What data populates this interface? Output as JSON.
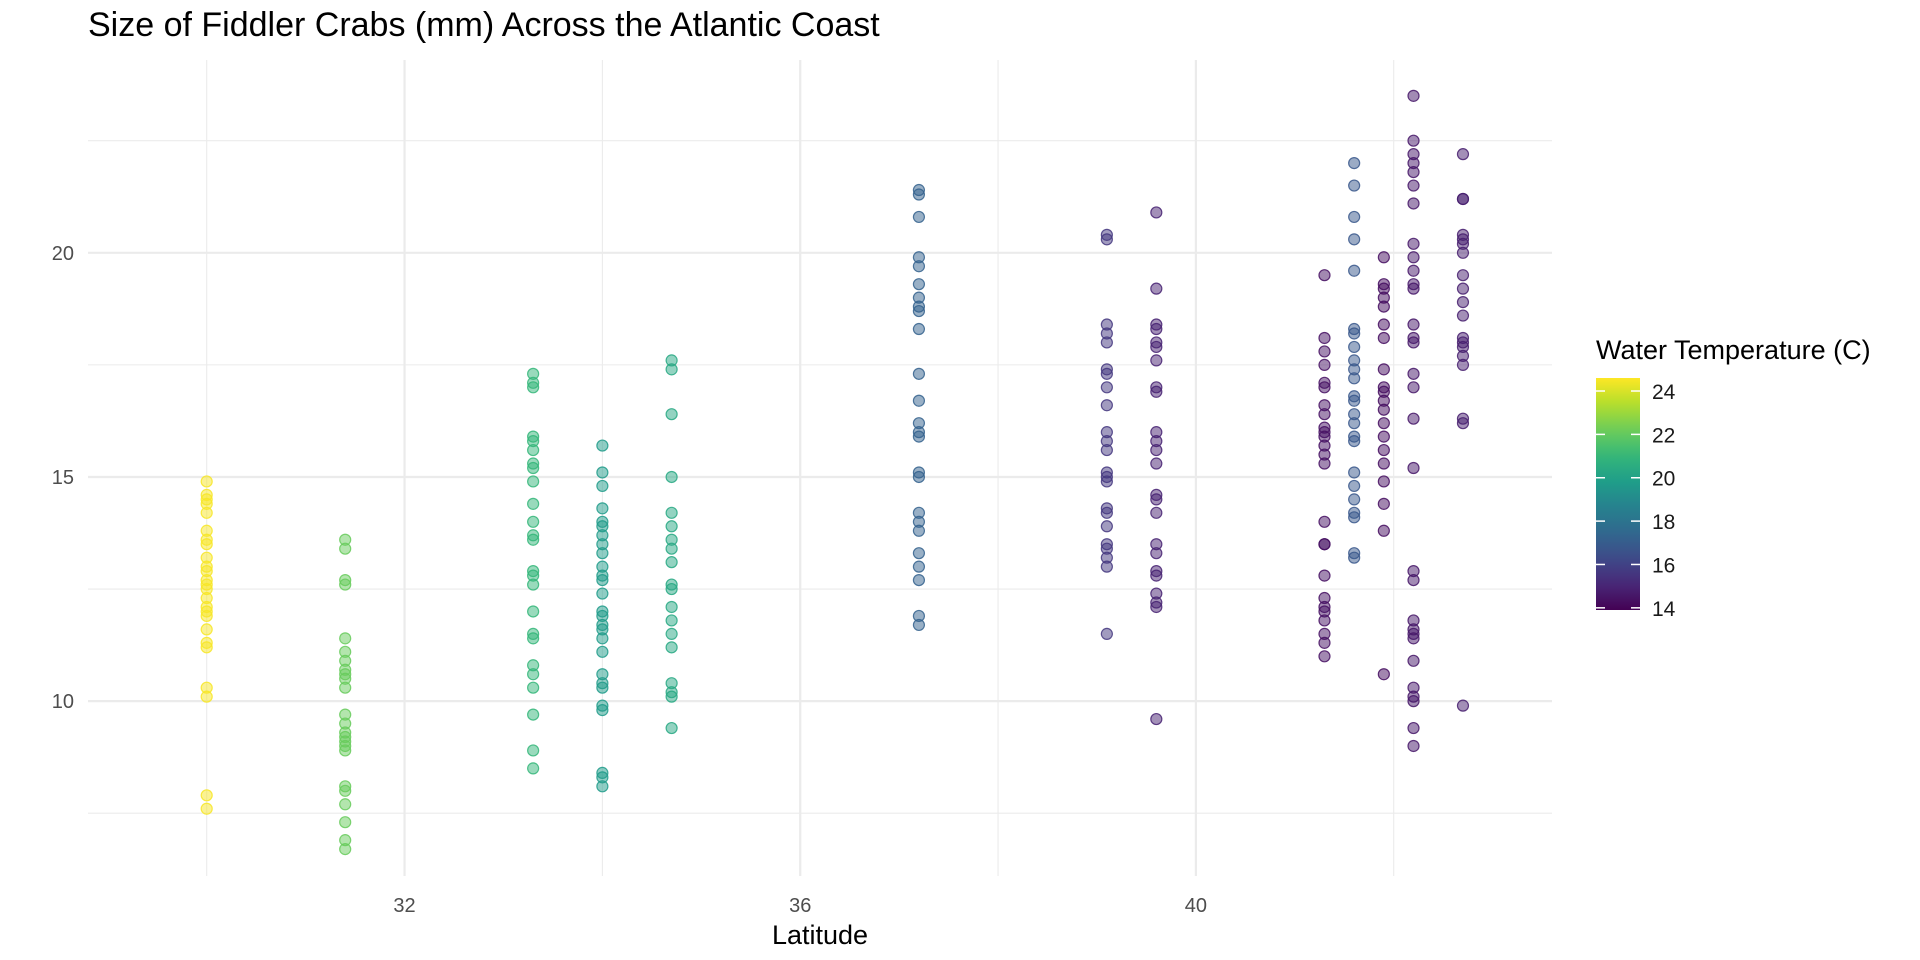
{
  "chart_data": {
    "type": "scatter",
    "title": "Size of Fiddler Crabs (mm) Across the Atlantic Coast",
    "xlabel": "Latitude",
    "ylabel": "",
    "xlim": [
      28.8,
      43.6
    ],
    "ylim": [
      6.1,
      24.3
    ],
    "x_ticks": [
      32,
      36,
      40
    ],
    "y_ticks": [
      10,
      15,
      20
    ],
    "grid": true,
    "point_opacity": 0.5,
    "legend": {
      "title": "Water Temperature (C)",
      "placement": "right",
      "type": "colorbar",
      "range": [
        13.9,
        24.6
      ],
      "ticks": [
        14,
        16,
        18,
        20,
        22,
        24
      ],
      "colormap": "viridis"
    },
    "groups": [
      {
        "latitude": 30.0,
        "water_temp": 24.5,
        "sizes": [
          14.9,
          14.6,
          14.5,
          14.4,
          14.2,
          13.8,
          13.6,
          13.5,
          13.2,
          13.0,
          12.9,
          12.7,
          12.6,
          12.5,
          12.3,
          12.1,
          12.0,
          11.9,
          11.6,
          11.3,
          11.2,
          10.3,
          10.1,
          7.9,
          7.6
        ]
      },
      {
        "latitude": 31.4,
        "water_temp": 22.1,
        "sizes": [
          13.6,
          13.4,
          12.7,
          12.6,
          11.4,
          11.1,
          10.9,
          10.7,
          10.6,
          10.5,
          10.3,
          9.7,
          9.5,
          9.3,
          9.2,
          9.1,
          9.0,
          8.9,
          8.1,
          8.0,
          7.7,
          7.3,
          6.9,
          6.7
        ]
      },
      {
        "latitude": 33.3,
        "water_temp": 21.0,
        "sizes": [
          17.3,
          17.1,
          17.0,
          15.9,
          15.8,
          15.6,
          15.3,
          15.2,
          14.9,
          14.4,
          14.0,
          13.7,
          13.6,
          12.9,
          12.8,
          12.6,
          12.0,
          11.5,
          11.4,
          10.8,
          10.6,
          10.3,
          9.7,
          8.9,
          8.5
        ]
      },
      {
        "latitude": 34.0,
        "water_temp": 19.7,
        "sizes": [
          15.7,
          15.1,
          14.8,
          14.3,
          14.0,
          13.9,
          13.7,
          13.5,
          13.3,
          13.0,
          12.8,
          12.7,
          12.4,
          12.0,
          11.9,
          11.7,
          11.6,
          11.4,
          11.1,
          10.6,
          10.4,
          10.3,
          9.9,
          9.8,
          8.4,
          8.3,
          8.1
        ]
      },
      {
        "latitude": 34.7,
        "water_temp": 20.3,
        "sizes": [
          17.6,
          17.4,
          16.4,
          15.0,
          14.2,
          13.9,
          13.6,
          13.4,
          13.1,
          12.6,
          12.5,
          12.1,
          11.8,
          11.5,
          11.2,
          10.4,
          10.2,
          10.1,
          9.4
        ]
      },
      {
        "latitude": 37.2,
        "water_temp": 17.2,
        "sizes": [
          21.4,
          21.3,
          20.8,
          19.9,
          19.7,
          19.3,
          19.0,
          18.8,
          18.7,
          18.3,
          17.3,
          16.7,
          16.2,
          16.0,
          15.9,
          15.1,
          15.0,
          14.2,
          14.0,
          13.8,
          13.3,
          13.0,
          12.7,
          11.9,
          11.7
        ]
      },
      {
        "latitude": 39.1,
        "water_temp": 15.6,
        "sizes": [
          20.4,
          20.3,
          18.4,
          18.2,
          18.0,
          17.4,
          17.3,
          17.0,
          16.6,
          16.0,
          15.8,
          15.6,
          15.1,
          15.0,
          14.9,
          14.3,
          14.2,
          13.9,
          13.5,
          13.4,
          13.2,
          13.0,
          11.5
        ]
      },
      {
        "latitude": 39.6,
        "water_temp": 14.9,
        "sizes": [
          20.9,
          19.2,
          18.4,
          18.3,
          18.0,
          17.9,
          17.6,
          17.0,
          16.9,
          16.0,
          15.8,
          15.6,
          15.3,
          14.6,
          14.5,
          14.2,
          13.5,
          13.3,
          12.9,
          12.8,
          12.4,
          12.2,
          12.1,
          9.6
        ]
      },
      {
        "latitude": 41.3,
        "water_temp": 14.4,
        "sizes": [
          19.5,
          18.1,
          17.8,
          17.5,
          17.1,
          17.0,
          16.6,
          16.4,
          16.1,
          16.0,
          15.9,
          15.7,
          15.5,
          15.3,
          14.0,
          13.5,
          13.5,
          12.8,
          12.3,
          12.1,
          12.0,
          11.8,
          11.5,
          11.3,
          11.0
        ]
      },
      {
        "latitude": 41.6,
        "water_temp": 16.8,
        "sizes": [
          22.0,
          21.5,
          20.8,
          20.3,
          19.6,
          18.3,
          18.2,
          17.9,
          17.6,
          17.4,
          17.2,
          16.8,
          16.7,
          16.4,
          16.2,
          15.9,
          15.8,
          15.1,
          14.8,
          14.5,
          14.2,
          14.1,
          13.3,
          13.2
        ]
      },
      {
        "latitude": 41.9,
        "water_temp": 14.3,
        "sizes": [
          19.9,
          19.3,
          19.2,
          19.0,
          18.8,
          18.4,
          18.1,
          17.4,
          17.0,
          16.9,
          16.7,
          16.5,
          16.2,
          15.9,
          15.6,
          15.3,
          14.9,
          14.4,
          13.8,
          10.6
        ]
      },
      {
        "latitude": 42.2,
        "water_temp": 14.6,
        "sizes": [
          23.5,
          22.5,
          22.2,
          22.0,
          21.8,
          21.5,
          21.1,
          20.2,
          19.9,
          19.6,
          19.3,
          19.2,
          18.4,
          18.1,
          18.0,
          17.3,
          17.0,
          16.3,
          15.2,
          12.9,
          12.7,
          11.8,
          11.6,
          11.5,
          11.4,
          10.9,
          10.3,
          10.1,
          10.0,
          9.4,
          9.0
        ]
      },
      {
        "latitude": 42.7,
        "water_temp": 14.8,
        "sizes": [
          22.2,
          21.2,
          21.2,
          20.4,
          20.3,
          20.2,
          20.0,
          19.5,
          19.2,
          18.9,
          18.6,
          18.1,
          18.0,
          17.9,
          17.7,
          17.5,
          16.3,
          16.2,
          9.9
        ]
      }
    ]
  }
}
